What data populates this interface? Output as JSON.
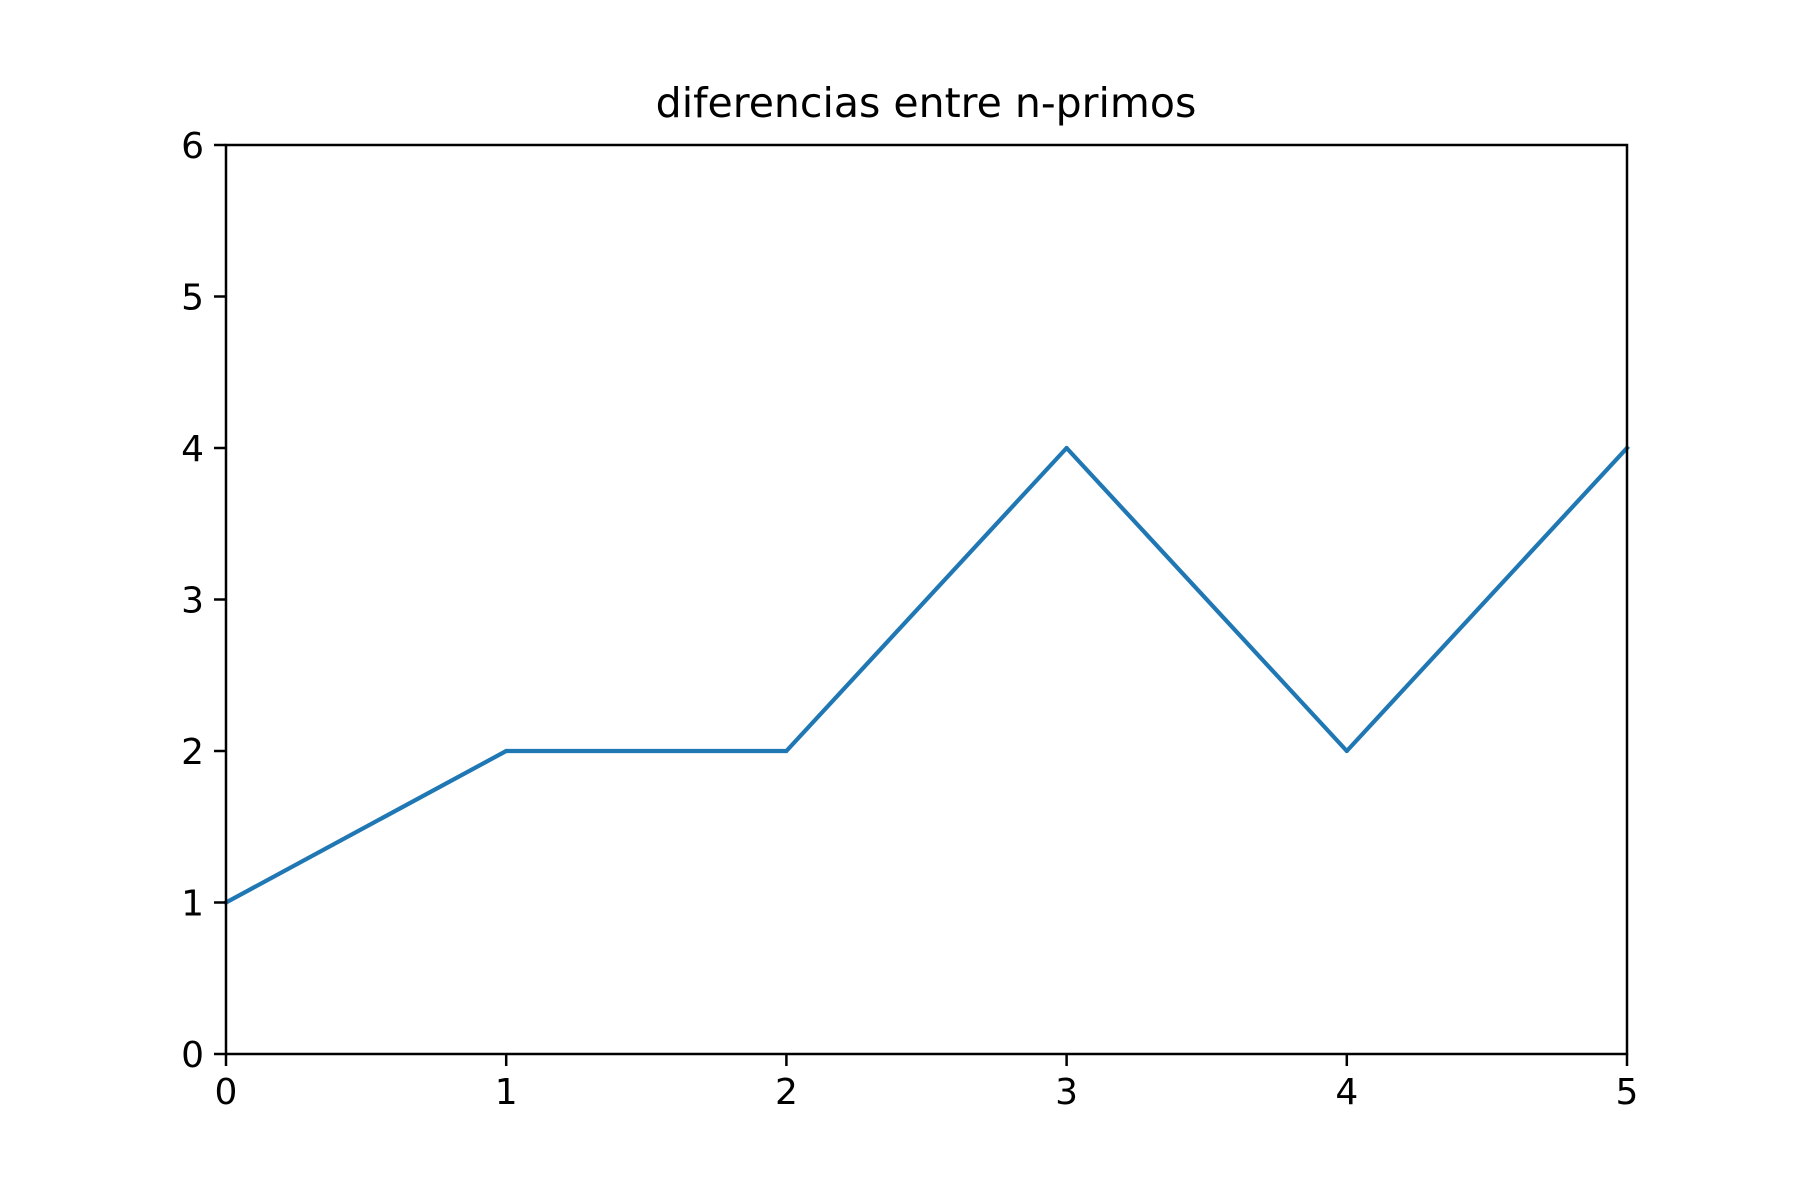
{
  "chart_data": {
    "type": "line",
    "title": "diferencias entre n-primos",
    "xlabel": "",
    "ylabel": "",
    "xlim": [
      0,
      5
    ],
    "ylim": [
      0,
      6
    ],
    "x_ticks": [
      "0",
      "1",
      "2",
      "3",
      "4",
      "5"
    ],
    "y_ticks": [
      "0",
      "1",
      "2",
      "3",
      "4",
      "5",
      "6"
    ],
    "grid": false,
    "legend": "none",
    "series": [
      {
        "color": "#1f77b4",
        "x": [
          0,
          1,
          2,
          3,
          4,
          5
        ],
        "y": [
          1,
          2,
          2,
          4,
          2,
          4
        ]
      }
    ]
  }
}
